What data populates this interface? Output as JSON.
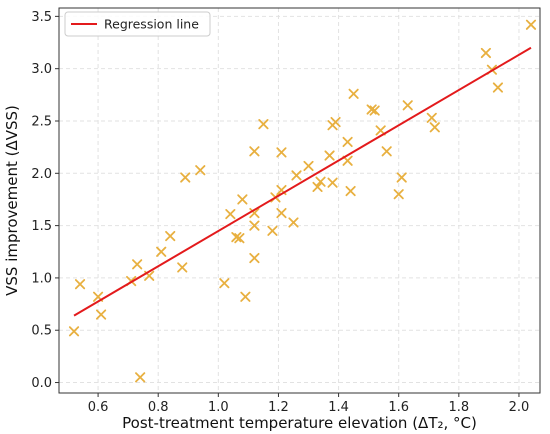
{
  "chart_data": {
    "type": "scatter",
    "title": "",
    "xlabel": "Post-treatment temperature elevation (ΔT₂, °C)",
    "ylabel": "VSS improvement (ΔVSS)",
    "xlim": [
      0.47,
      2.07
    ],
    "ylim": [
      -0.1,
      3.58
    ],
    "x_ticks": [
      0.6,
      0.8,
      1.0,
      1.2,
      1.4,
      1.6,
      1.8,
      2.0
    ],
    "x_tick_labels": [
      "0.6",
      "0.8",
      "1.0",
      "1.2",
      "1.4",
      "1.6",
      "1.8",
      "2.0"
    ],
    "y_ticks": [
      0.0,
      0.5,
      1.0,
      1.5,
      2.0,
      2.5,
      3.0,
      3.5
    ],
    "y_tick_labels": [
      "0.0",
      "0.5",
      "1.0",
      "1.5",
      "2.0",
      "2.5",
      "3.0",
      "3.5"
    ],
    "grid": true,
    "legend": {
      "position": "upper-left",
      "entries": [
        "Regression line"
      ]
    },
    "series": [
      {
        "type": "scatter",
        "marker": "x",
        "color": "#E8B040",
        "points": [
          [
            0.52,
            0.49
          ],
          [
            0.54,
            0.94
          ],
          [
            0.6,
            0.82
          ],
          [
            0.61,
            0.65
          ],
          [
            0.71,
            0.97
          ],
          [
            0.73,
            1.13
          ],
          [
            0.74,
            0.05
          ],
          [
            0.77,
            1.02
          ],
          [
            0.81,
            1.25
          ],
          [
            0.84,
            1.4
          ],
          [
            0.88,
            1.1
          ],
          [
            0.89,
            1.96
          ],
          [
            0.94,
            2.03
          ],
          [
            1.02,
            0.95
          ],
          [
            1.04,
            1.61
          ],
          [
            1.06,
            1.39
          ],
          [
            1.07,
            1.38
          ],
          [
            1.08,
            1.75
          ],
          [
            1.09,
            0.82
          ],
          [
            1.12,
            1.19
          ],
          [
            1.12,
            1.5
          ],
          [
            1.12,
            1.62
          ],
          [
            1.12,
            2.21
          ],
          [
            1.15,
            2.47
          ],
          [
            1.18,
            1.45
          ],
          [
            1.19,
            1.77
          ],
          [
            1.21,
            1.62
          ],
          [
            1.21,
            1.84
          ],
          [
            1.21,
            2.2
          ],
          [
            1.25,
            1.53
          ],
          [
            1.26,
            1.98
          ],
          [
            1.3,
            2.07
          ],
          [
            1.33,
            1.87
          ],
          [
            1.34,
            1.92
          ],
          [
            1.37,
            2.17
          ],
          [
            1.38,
            1.91
          ],
          [
            1.38,
            2.46
          ],
          [
            1.39,
            2.49
          ],
          [
            1.43,
            2.12
          ],
          [
            1.43,
            2.3
          ],
          [
            1.44,
            1.83
          ],
          [
            1.45,
            2.76
          ],
          [
            1.51,
            2.61
          ],
          [
            1.52,
            2.6
          ],
          [
            1.54,
            2.41
          ],
          [
            1.56,
            2.21
          ],
          [
            1.6,
            1.8
          ],
          [
            1.61,
            1.96
          ],
          [
            1.63,
            2.65
          ],
          [
            1.71,
            2.53
          ],
          [
            1.72,
            2.44
          ],
          [
            1.89,
            3.15
          ],
          [
            1.91,
            2.99
          ],
          [
            1.93,
            2.82
          ],
          [
            2.04,
            3.42
          ]
        ]
      },
      {
        "name": "Regression line",
        "type": "line",
        "color": "#e31a1c",
        "x": [
          0.52,
          2.04
        ],
        "y": [
          0.64,
          3.2
        ]
      }
    ]
  }
}
